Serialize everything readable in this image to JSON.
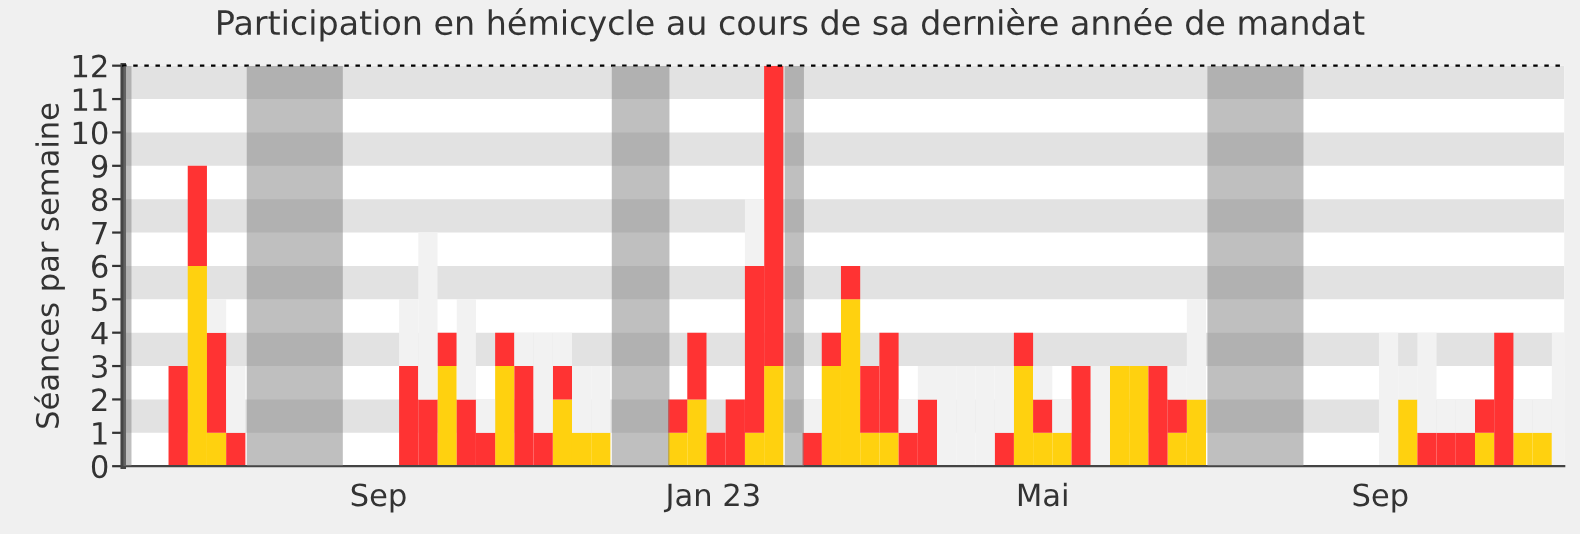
{
  "chart_data": {
    "type": "bar",
    "stacked": true,
    "title": "Participation en hémicycle au cours de sa dernière année de mandat",
    "ylabel": "Séances par semaine",
    "x": [
      "2022-06-20",
      "2022-06-27",
      "2022-07-04",
      "2022-07-11",
      "2022-07-18",
      "2022-07-25",
      "2022-08-01",
      "2022-08-08",
      "2022-08-15",
      "2022-08-22",
      "2022-08-29",
      "2022-09-05",
      "2022-09-12",
      "2022-09-19",
      "2022-09-26",
      "2022-10-03",
      "2022-10-10",
      "2022-10-17",
      "2022-10-24",
      "2022-10-31",
      "2022-11-07",
      "2022-11-14",
      "2022-11-21",
      "2022-11-28",
      "2022-12-05",
      "2022-12-12",
      "2022-12-19",
      "2022-12-26",
      "2023-01-02",
      "2023-01-09",
      "2023-01-16",
      "2023-01-23",
      "2023-01-30",
      "2023-02-06",
      "2023-02-13",
      "2023-02-20",
      "2023-02-27",
      "2023-03-06",
      "2023-03-13",
      "2023-03-20",
      "2023-03-27",
      "2023-04-03",
      "2023-04-10",
      "2023-04-17",
      "2023-04-24",
      "2023-05-01",
      "2023-05-08",
      "2023-05-15",
      "2023-05-22",
      "2023-05-29",
      "2023-06-05",
      "2023-06-12",
      "2023-06-19",
      "2023-06-26",
      "2023-07-03",
      "2023-07-10",
      "2023-07-17",
      "2023-07-24",
      "2023-07-31",
      "2023-08-07",
      "2023-08-14",
      "2023-08-21",
      "2023-08-28",
      "2023-09-04",
      "2023-09-11",
      "2023-09-18",
      "2023-09-25",
      "2023-10-02",
      "2023-10-09",
      "2023-10-16",
      "2023-10-23",
      "2023-10-30",
      "2023-11-06"
    ],
    "series": [
      {
        "color": "#ffd10f",
        "values": [
          0,
          6,
          1,
          0,
          0,
          0,
          0,
          0,
          0,
          0,
          0,
          0,
          0,
          0,
          3,
          0,
          0,
          3,
          0,
          0,
          2,
          1,
          1,
          0,
          0,
          0,
          1,
          2,
          0,
          0,
          1,
          3,
          0,
          0,
          3,
          5,
          1,
          1,
          0,
          0,
          0,
          0,
          0,
          0,
          3,
          1,
          1,
          0,
          0,
          3,
          3,
          0,
          1,
          2,
          0,
          0,
          0,
          0,
          0,
          0,
          0,
          0,
          0,
          0,
          2,
          0,
          0,
          0,
          1,
          0,
          1,
          1,
          0
        ]
      },
      {
        "color": "#ff3333",
        "values": [
          3,
          3,
          3,
          1,
          0,
          0,
          0,
          0,
          0,
          0,
          0,
          0,
          3,
          2,
          1,
          2,
          1,
          1,
          3,
          1,
          1,
          0,
          0,
          0,
          0,
          0,
          1,
          2,
          1,
          2,
          5,
          9,
          0,
          1,
          1,
          1,
          2,
          3,
          1,
          2,
          0,
          0,
          0,
          1,
          1,
          1,
          0,
          3,
          0,
          0,
          0,
          3,
          1,
          0,
          0,
          0,
          0,
          0,
          0,
          0,
          0,
          0,
          0,
          0,
          0,
          1,
          1,
          1,
          1,
          4,
          0,
          0,
          0
        ]
      },
      {
        "color": "#f2f2f2",
        "values": [
          0,
          0,
          1,
          2,
          0,
          0,
          0,
          0,
          0,
          0,
          0,
          0,
          2,
          5,
          0,
          3,
          1,
          0,
          1,
          3,
          1,
          2,
          2,
          0,
          0,
          0,
          0,
          0,
          0,
          0,
          2,
          0,
          0,
          1,
          0,
          0,
          0,
          0,
          1,
          1,
          3,
          3,
          3,
          2,
          0,
          1,
          1,
          0,
          3,
          0,
          0,
          0,
          1,
          3,
          0,
          0,
          0,
          0,
          0,
          0,
          0,
          0,
          0,
          4,
          1,
          3,
          1,
          1,
          0,
          0,
          1,
          1,
          4
        ]
      }
    ],
    "xlim": [
      "2022-05-31",
      "2023-11-07"
    ],
    "xticks": [
      {
        "value": "2022-09-01",
        "label": "Sep"
      },
      {
        "value": "2023-01-01",
        "label": "Jan 23"
      },
      {
        "value": "2023-05-01",
        "label": "Mai"
      },
      {
        "value": "2023-09-01",
        "label": "Sep"
      }
    ],
    "ylim": [
      0,
      12
    ],
    "yticks": [
      0,
      1,
      2,
      3,
      4,
      5,
      6,
      7,
      8,
      9,
      10,
      11,
      12
    ],
    "bands": [
      {
        "axis": "x",
        "from": "2022-05-31",
        "to": "2022-06-03",
        "color": "#808080"
      },
      {
        "axis": "x",
        "from": "2022-07-15",
        "to": "2022-08-19",
        "color": "#808080"
      },
      {
        "axis": "x",
        "from": "2022-11-25",
        "to": "2022-12-16",
        "color": "#808080"
      },
      {
        "axis": "x",
        "from": "2023-01-27",
        "to": "2023-02-03",
        "color": "#808080"
      },
      {
        "axis": "x",
        "from": "2023-06-30",
        "to": "2023-08-04",
        "color": "#808080"
      }
    ]
  }
}
